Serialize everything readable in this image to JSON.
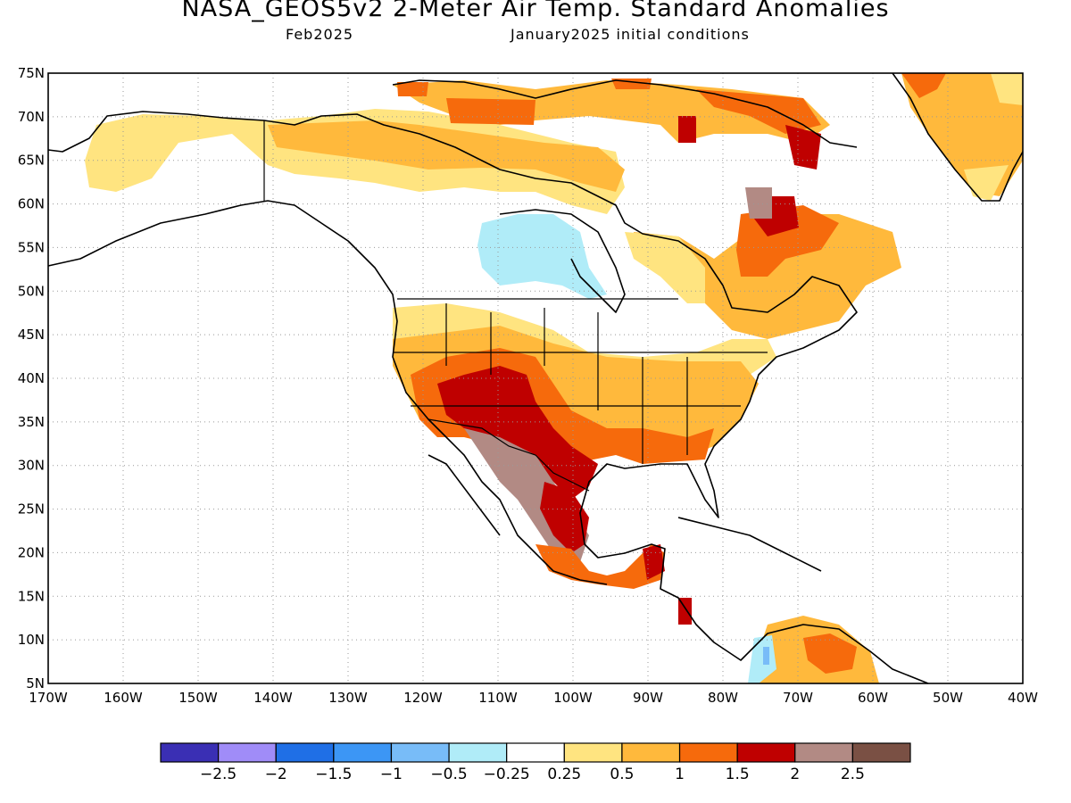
{
  "header": {
    "title": "NASA_GEOS5v2 2-Meter Air Temp. Standard Anomalies",
    "subtitle_left": "Feb2025",
    "subtitle_right": "January2025 initial conditions"
  },
  "map": {
    "lat_labels": [
      "75N",
      "70N",
      "65N",
      "60N",
      "55N",
      "50N",
      "45N",
      "40N",
      "35N",
      "30N",
      "25N",
      "20N",
      "15N",
      "10N",
      "5N"
    ],
    "lon_labels": [
      "170W",
      "160W",
      "150W",
      "140W",
      "130W",
      "120W",
      "110W",
      "100W",
      "90W",
      "80W",
      "70W",
      "60W",
      "50W",
      "40W"
    ],
    "lat_range": [
      5,
      75
    ],
    "lon_range": [
      -170,
      -40
    ],
    "grid": true,
    "colors": {
      "coast": "#000000",
      "grid": "#999999"
    }
  },
  "colorbar": {
    "colors": [
      "#3a2fb4",
      "#a08cf8",
      "#1f6fe6",
      "#3c96f5",
      "#78bcf8",
      "#b0ecf8",
      "#ffffff",
      "#ffe480",
      "#ffb93c",
      "#f66a0c",
      "#bf0000",
      "#b28a84",
      "#7a5044"
    ],
    "labels": [
      "-2.5",
      "-2",
      "-1.5",
      "-1",
      "-0.5",
      "-0.25",
      "0.25",
      "0.5",
      "1",
      "1.5",
      "2",
      "2.5"
    ]
  }
}
